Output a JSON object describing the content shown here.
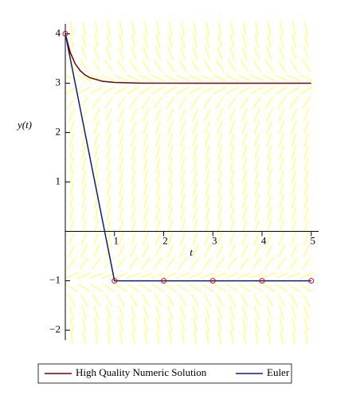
{
  "chart_data": {
    "type": "line",
    "x_label": "t",
    "y_label": "y(t)",
    "xlim": [
      0,
      5.15
    ],
    "ylim": [
      -2.2,
      4.2
    ],
    "xticks": [
      1,
      2,
      3,
      4,
      5
    ],
    "yticks": [
      {
        "value": -2,
        "label": "−2"
      },
      {
        "value": -1,
        "label": "−1"
      },
      1,
      2,
      3,
      4
    ],
    "direction_field_color": "#ffff66",
    "series": [
      {
        "name": "High Quality Numeric Solution",
        "color": "#7b0000",
        "x": [
          0,
          0.1,
          0.2,
          0.3,
          0.4,
          0.5,
          0.75,
          1,
          1.5,
          2,
          3,
          4,
          5
        ],
        "values": [
          4,
          3.62,
          3.395,
          3.256,
          3.168,
          3.111,
          3.04,
          3.015,
          3.002,
          3.0,
          3,
          3,
          3
        ]
      },
      {
        "name": "Euler",
        "color": "#0a1e8c",
        "marker_color": "#e00000",
        "x": [
          0,
          1,
          2,
          3,
          4,
          5
        ],
        "values": [
          4,
          -1,
          -1,
          -1,
          -1,
          -1
        ]
      }
    ]
  }
}
